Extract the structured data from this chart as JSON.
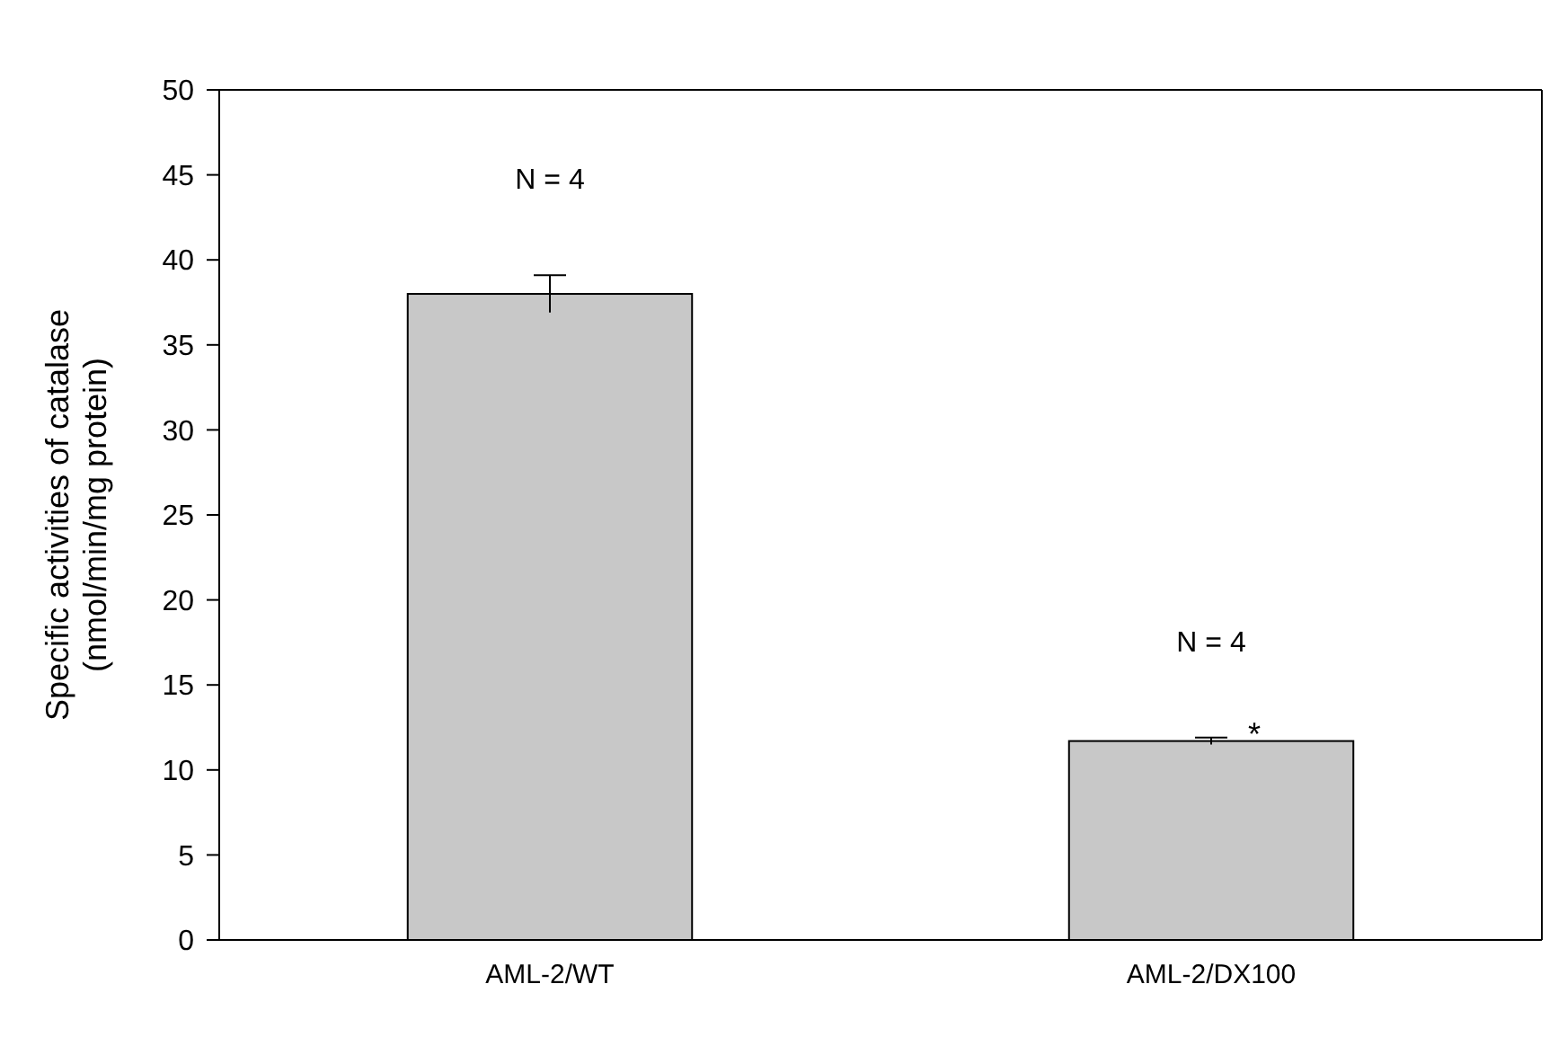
{
  "chart_data": {
    "type": "bar",
    "ylabel": "Specific activities of catalase\n(nmol/min/mg protein)",
    "categories": [
      "AML-2/WT",
      "AML-2/DX100"
    ],
    "values": [
      38,
      11.7
    ],
    "errors": [
      1.1,
      0.2
    ],
    "color": "#c8c8c8",
    "ylim": [
      0,
      50
    ],
    "yticks": [
      0,
      5,
      10,
      15,
      20,
      25,
      30,
      35,
      40,
      45,
      50
    ],
    "grid": false,
    "annotations": [
      "N = 4",
      "N = 4",
      "*"
    ]
  }
}
